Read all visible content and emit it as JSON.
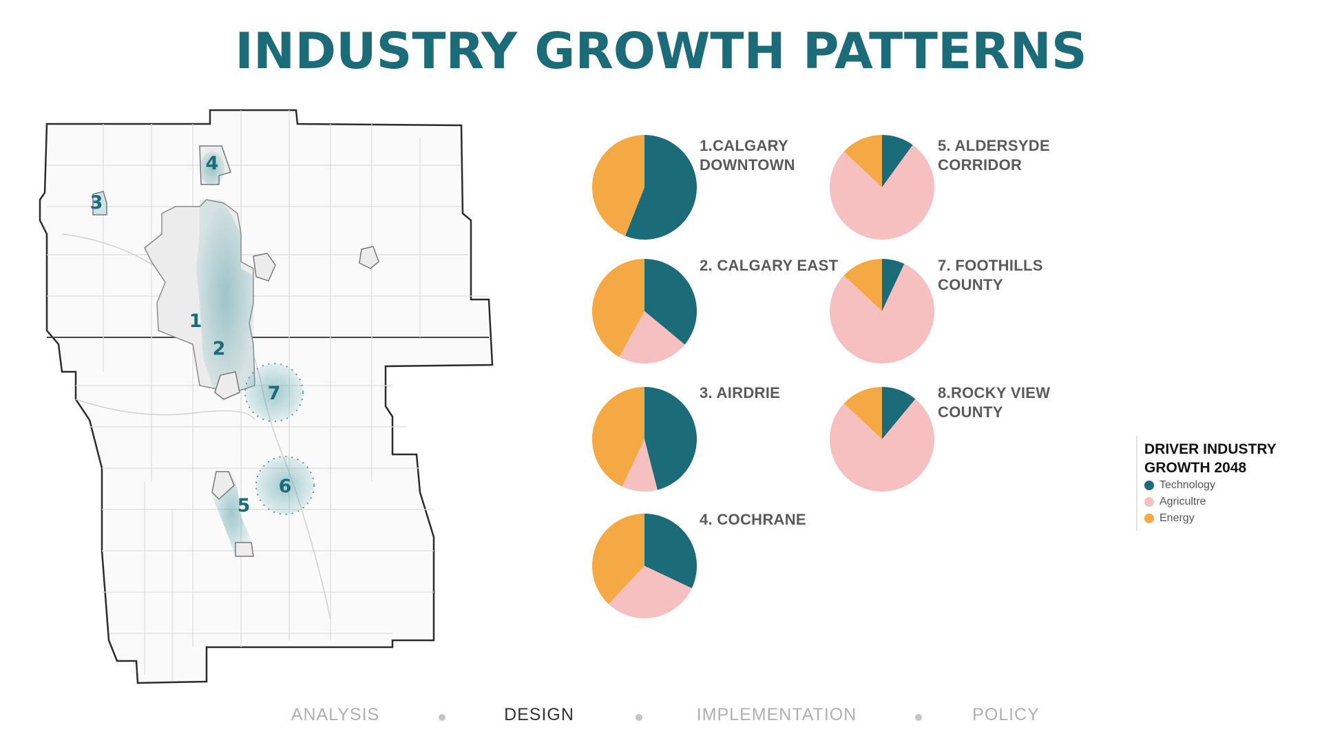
{
  "title": "INDUSTRY GROWTH PATTERNS",
  "colors": {
    "technology": "#1b6b78",
    "agriculture": "#f7c0c0",
    "energy": "#f4a944",
    "title": "#1c6b78"
  },
  "map": {
    "labels": [
      "1",
      "2",
      "3",
      "4",
      "5",
      "6",
      "7"
    ]
  },
  "chart_data": [
    {
      "type": "pie",
      "title": "1.CALGARY DOWNTOWN",
      "categories": [
        "Technology",
        "Agriculture",
        "Energy"
      ],
      "values": [
        56,
        0,
        44
      ]
    },
    {
      "type": "pie",
      "title": "2. CALGARY EAST",
      "categories": [
        "Technology",
        "Agriculture",
        "Energy"
      ],
      "values": [
        36,
        22,
        42
      ]
    },
    {
      "type": "pie",
      "title": "3. AIRDRIE",
      "categories": [
        "Technology",
        "Agriculture",
        "Energy"
      ],
      "values": [
        46,
        11,
        43
      ]
    },
    {
      "type": "pie",
      "title": "4. COCHRANE",
      "categories": [
        "Technology",
        "Agriculture",
        "Energy"
      ],
      "values": [
        32,
        30,
        38
      ]
    },
    {
      "type": "pie",
      "title": "5. ALDERSYDE CORRIDOR",
      "categories": [
        "Technology",
        "Agriculture",
        "Energy"
      ],
      "values": [
        10,
        77,
        13
      ]
    },
    {
      "type": "pie",
      "title": "7. FOOTHILLS COUNTY",
      "categories": [
        "Technology",
        "Agriculture",
        "Energy"
      ],
      "values": [
        7,
        80,
        13
      ]
    },
    {
      "type": "pie",
      "title": "8.ROCKY VIEW COUNTY",
      "categories": [
        "Technology",
        "Agriculture",
        "Energy"
      ],
      "values": [
        11,
        76,
        13
      ]
    }
  ],
  "legend": {
    "title": "DRIVER INDUSTRY GROWTH 2048",
    "items": [
      {
        "label": "Technology",
        "color": "#1b6b78"
      },
      {
        "label": "Agricultre",
        "color": "#f7c0c0"
      },
      {
        "label": "Energy",
        "color": "#f4a944"
      }
    ]
  },
  "nav": {
    "items": [
      "ANALYSIS",
      "DESIGN",
      "IMPLEMENTATION",
      "POLICY"
    ],
    "active": "DESIGN"
  }
}
